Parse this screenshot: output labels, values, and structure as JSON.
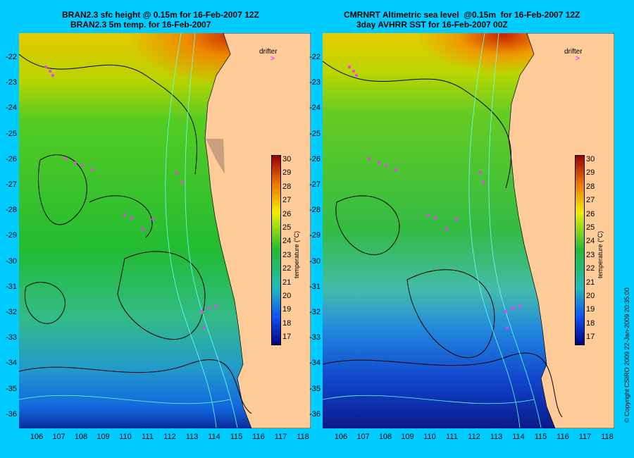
{
  "left_panel": {
    "title_line1": "BRAN2.3 sfc height @ 0.15m for 16-Feb-2007 12Z",
    "title_line2": "BRAN2.3 5m temp. for 16-Feb-2007",
    "legend_label": "drifter"
  },
  "right_panel": {
    "title_line1": "CMRNRT Altimetric sea level  @0.15m  for 16-Feb-2007 12Z",
    "title_line2": "3day AVHRR SST for 16-Feb-2007 00Z",
    "legend_label": "drifter"
  },
  "axes": {
    "lat_ticks": [
      "-22",
      "-23",
      "-24",
      "-25",
      "-26",
      "-27",
      "-28",
      "-29",
      "-30",
      "-31",
      "-32",
      "-33",
      "-34",
      "-35",
      "-36"
    ],
    "lon_ticks": [
      "106",
      "107",
      "108",
      "109",
      "110",
      "111",
      "112",
      "113",
      "114",
      "115",
      "116",
      "117",
      "118"
    ]
  },
  "colorbar": {
    "unit": "temperature (°C)",
    "ticks": [
      "30",
      "29",
      "28",
      "27",
      "26",
      "25",
      "24",
      "23",
      "22",
      "21",
      "20",
      "19",
      "18",
      "17"
    ]
  },
  "copyright": "© Copyright CSIRO 2009   22-Jan-2009 20:35:00",
  "colors": {
    "background": "#00ccff",
    "land": "#ffcc99",
    "drifter": "#ff33ff",
    "contour": "#000000",
    "bathymetry": "#66ffff"
  }
}
